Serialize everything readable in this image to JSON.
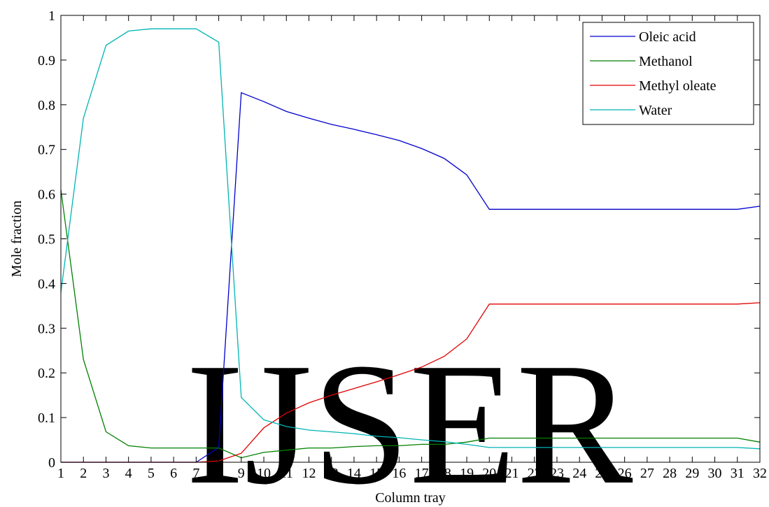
{
  "watermark": "IJSER",
  "chart_data": {
    "type": "line",
    "xlabel": "Column tray",
    "ylabel": "Mole fraction",
    "xlim": [
      1,
      32
    ],
    "ylim": [
      0,
      1
    ],
    "grid": false,
    "legend_position": "top-right",
    "x": [
      1,
      2,
      3,
      4,
      5,
      6,
      7,
      8,
      9,
      10,
      11,
      12,
      13,
      14,
      15,
      16,
      17,
      18,
      19,
      20,
      21,
      22,
      23,
      24,
      25,
      26,
      27,
      28,
      29,
      30,
      31,
      32
    ],
    "x_tick_labels": [
      "1",
      "2",
      "3",
      "4",
      "5",
      "6",
      "7",
      "8",
      "9",
      "10",
      "11",
      "12",
      "13",
      "14",
      "15",
      "16",
      "17",
      "18",
      "19",
      "20",
      "21",
      "22",
      "23",
      "24",
      "25",
      "26",
      "27",
      "28",
      "29",
      "30",
      "31",
      "32"
    ],
    "y_ticks": [
      0,
      0.1,
      0.2,
      0.3,
      0.4,
      0.5,
      0.6,
      0.7,
      0.8,
      0.9,
      1
    ],
    "y_tick_labels": [
      "0",
      "0.1",
      "0.2",
      "0.3",
      "0.4",
      "0.5",
      "0.6",
      "0.7",
      "0.8",
      "0.9",
      "1"
    ],
    "series": [
      {
        "name": "Oleic acid",
        "color": "#0000cc",
        "values": [
          0,
          0,
          0,
          0,
          0,
          0,
          0,
          0.033,
          0.827,
          0.807,
          0.785,
          0.77,
          0.756,
          0.745,
          0.733,
          0.72,
          0.702,
          0.68,
          0.643,
          0.566,
          0.566,
          0.566,
          0.566,
          0.566,
          0.566,
          0.566,
          0.566,
          0.566,
          0.566,
          0.566,
          0.566,
          0.573
        ]
      },
      {
        "name": "Methanol",
        "color": "#008000",
        "values": [
          0.61,
          0.23,
          0.068,
          0.037,
          0.032,
          0.032,
          0.032,
          0.032,
          0.01,
          0.022,
          0.027,
          0.032,
          0.032,
          0.035,
          0.037,
          0.037,
          0.04,
          0.04,
          0.045,
          0.054,
          0.054,
          0.054,
          0.054,
          0.054,
          0.054,
          0.054,
          0.054,
          0.054,
          0.054,
          0.054,
          0.054,
          0.045
        ]
      },
      {
        "name": "Methyl oleate",
        "color": "#e00000",
        "values": [
          0,
          0,
          0,
          0,
          0,
          0,
          0,
          0.003,
          0.02,
          0.077,
          0.11,
          0.133,
          0.15,
          0.165,
          0.18,
          0.196,
          0.213,
          0.237,
          0.276,
          0.354,
          0.354,
          0.354,
          0.354,
          0.354,
          0.354,
          0.354,
          0.354,
          0.354,
          0.354,
          0.354,
          0.354,
          0.357
        ]
      },
      {
        "name": "Water",
        "color": "#00b4b4",
        "values": [
          0.38,
          0.77,
          0.933,
          0.965,
          0.97,
          0.97,
          0.97,
          0.94,
          0.145,
          0.095,
          0.08,
          0.072,
          0.068,
          0.064,
          0.058,
          0.055,
          0.05,
          0.046,
          0.04,
          0.033,
          0.033,
          0.033,
          0.033,
          0.033,
          0.033,
          0.033,
          0.033,
          0.033,
          0.033,
          0.033,
          0.033,
          0.03
        ]
      }
    ]
  }
}
